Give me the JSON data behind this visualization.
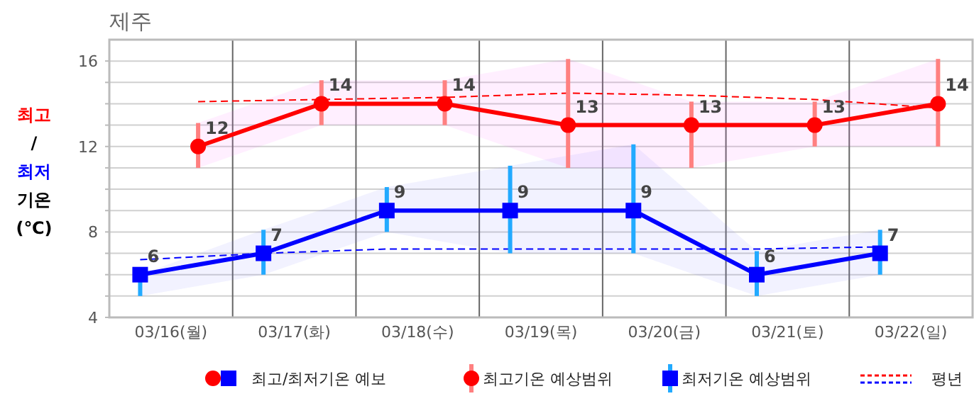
{
  "chart_data": {
    "type": "line",
    "title": "제주",
    "ylabel": "최고 / 최저 기온 (℃)",
    "legend_title": "최고/최저기온 예보",
    "categories": [
      "03/16(월)",
      "03/17(화)",
      "03/18(수)",
      "03/19(목)",
      "03/20(금)",
      "03/21(토)",
      "03/22(일)"
    ],
    "series": [
      {
        "name": "최고기온 예상범위",
        "color": "#ff0000",
        "marker": "circle",
        "values": [
          12,
          14,
          14,
          13,
          13,
          13,
          14
        ],
        "value_labels": [
          "12",
          "14",
          "14",
          "13",
          "13",
          "13",
          "14"
        ],
        "errors": [
          [
            11,
            13.1
          ],
          [
            13,
            15.1
          ],
          [
            13,
            15.1
          ],
          [
            11,
            16.1
          ],
          [
            11,
            14.1
          ],
          [
            12,
            14.1
          ],
          [
            12,
            16.1
          ]
        ],
        "lower": [
          11,
          13,
          13,
          11,
          11,
          12,
          12
        ],
        "upper": [
          13.1,
          15.1,
          15.1,
          16.1,
          14.1,
          14.1,
          16.1
        ]
      },
      {
        "name": "최저기온 예상범위",
        "color": "#0000ff",
        "marker": "square",
        "values": [
          6,
          7,
          9,
          9,
          9,
          6,
          7
        ],
        "value_labels": [
          "6",
          "7",
          "9",
          "9",
          "9",
          "6",
          "7"
        ],
        "errors": [
          [
            5,
            6
          ],
          [
            6,
            8.1
          ],
          [
            8,
            10.1
          ],
          [
            7,
            11.1
          ],
          [
            7,
            12.1
          ],
          [
            5,
            7.1
          ],
          [
            6,
            8.1
          ]
        ],
        "lower": [
          5,
          6,
          8,
          7,
          7,
          5,
          6
        ],
        "upper": [
          6,
          8.1,
          10.1,
          11.1,
          12.1,
          7.1,
          8.1
        ]
      },
      {
        "name": "평년",
        "color": "#ff0000",
        "line_style": "dashed",
        "marker": "none",
        "values": [
          14.1,
          14.2,
          14.3,
          14.5,
          14.4,
          14.2,
          13.8
        ]
      },
      {
        "color": "#0000ff",
        "line_style": "dashed",
        "marker": "none",
        "values": [
          6.7,
          7.0,
          7.2,
          7.2,
          7.2,
          7.2,
          7.3
        ]
      }
    ],
    "ylim": [
      4,
      17
    ],
    "yticks": [
      4,
      {
        "value": 5,
        "label": null
      },
      {
        "value": 6,
        "label": null
      },
      {
        "value": 7,
        "label": null
      },
      8,
      {
        "value": 9,
        "label": null
      },
      {
        "value": 10,
        "label": null
      },
      {
        "value": 11,
        "label": null
      },
      12,
      {
        "value": 13,
        "label": null
      },
      {
        "value": 14,
        "label": null
      },
      {
        "value": 15,
        "label": null
      },
      16
    ],
    "grid": true,
    "legend": "bottom"
  }
}
